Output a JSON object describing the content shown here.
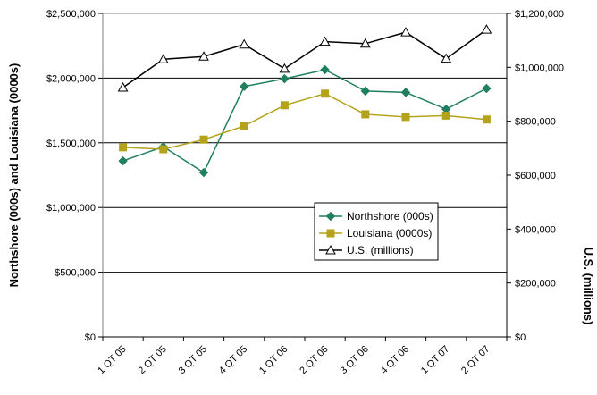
{
  "chart_data": {
    "type": "line",
    "title": "",
    "xlabel": "",
    "ylabel": "Northshore (000s) and Louisiana (0000s)",
    "y2label": "U.S. (millions)",
    "categories": [
      "1 QT 05",
      "2 QT 05",
      "3 QT 05",
      "4 QT 05",
      "1 QT 06",
      "2 QT 06",
      "3 QT 06",
      "4 QT 06",
      "1 QT 07",
      "2 QT 07"
    ],
    "ylim": [
      0,
      2500000
    ],
    "y2lim": [
      0,
      1200000
    ],
    "yticks": [
      "$0",
      "$500,000",
      "$1,000,000",
      "$1,500,000",
      "$2,000,000",
      "$2,500,000"
    ],
    "y2ticks": [
      "$0",
      "$200,000",
      "$400,000",
      "$600,000",
      "$800,000",
      "$1,000,000",
      "$1,200,000"
    ],
    "grid": true,
    "legend_position": "center-right",
    "series": [
      {
        "name": "Northshore (000s)",
        "axis": "left",
        "color": "#1f7f5f",
        "marker": "diamond",
        "values": [
          1360000,
          1470000,
          1270000,
          1935000,
          1995000,
          2065000,
          1900000,
          1890000,
          1760000,
          1920000
        ]
      },
      {
        "name": "Louisiana (0000s)",
        "axis": "left",
        "color": "#b3a21a",
        "marker": "square",
        "values": [
          1465000,
          1450000,
          1525000,
          1630000,
          1790000,
          1880000,
          1720000,
          1700000,
          1710000,
          1680000
        ]
      },
      {
        "name": "U.S. (millions)",
        "axis": "right",
        "color": "#000000",
        "marker": "triangle",
        "values": [
          925000,
          1030000,
          1040000,
          1085000,
          995000,
          1095000,
          1088000,
          1130000,
          1032000,
          1140000
        ]
      }
    ]
  }
}
